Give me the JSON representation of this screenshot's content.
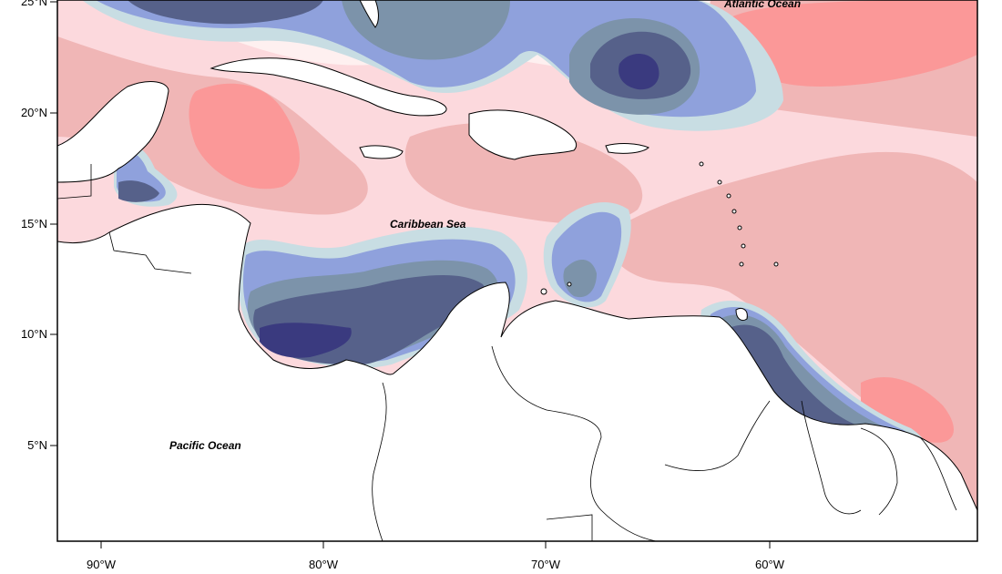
{
  "map": {
    "labels": {
      "atlantic": "Atlantic Ocean",
      "caribbean": "Caribbean Sea",
      "pacific": "Pacific Ocean"
    },
    "lat_ticks": [
      "25°N",
      "20°N",
      "15°N",
      "10°N",
      "5°N"
    ],
    "lon_ticks": [
      "90°W",
      "80°W",
      "70°W",
      "60°W"
    ],
    "palette": {
      "strong_positive": "#fb9898",
      "positive": "#f0b6b6",
      "weak_positive": "#fcd9dd",
      "neutral": "#fef0f0",
      "weak_negative": "#c8dde3",
      "negative": "#8fa1dc",
      "moderate_negative": "#7c93aa",
      "strong_negative": "#56618a",
      "extreme_negative": "#3a3a7f"
    }
  }
}
